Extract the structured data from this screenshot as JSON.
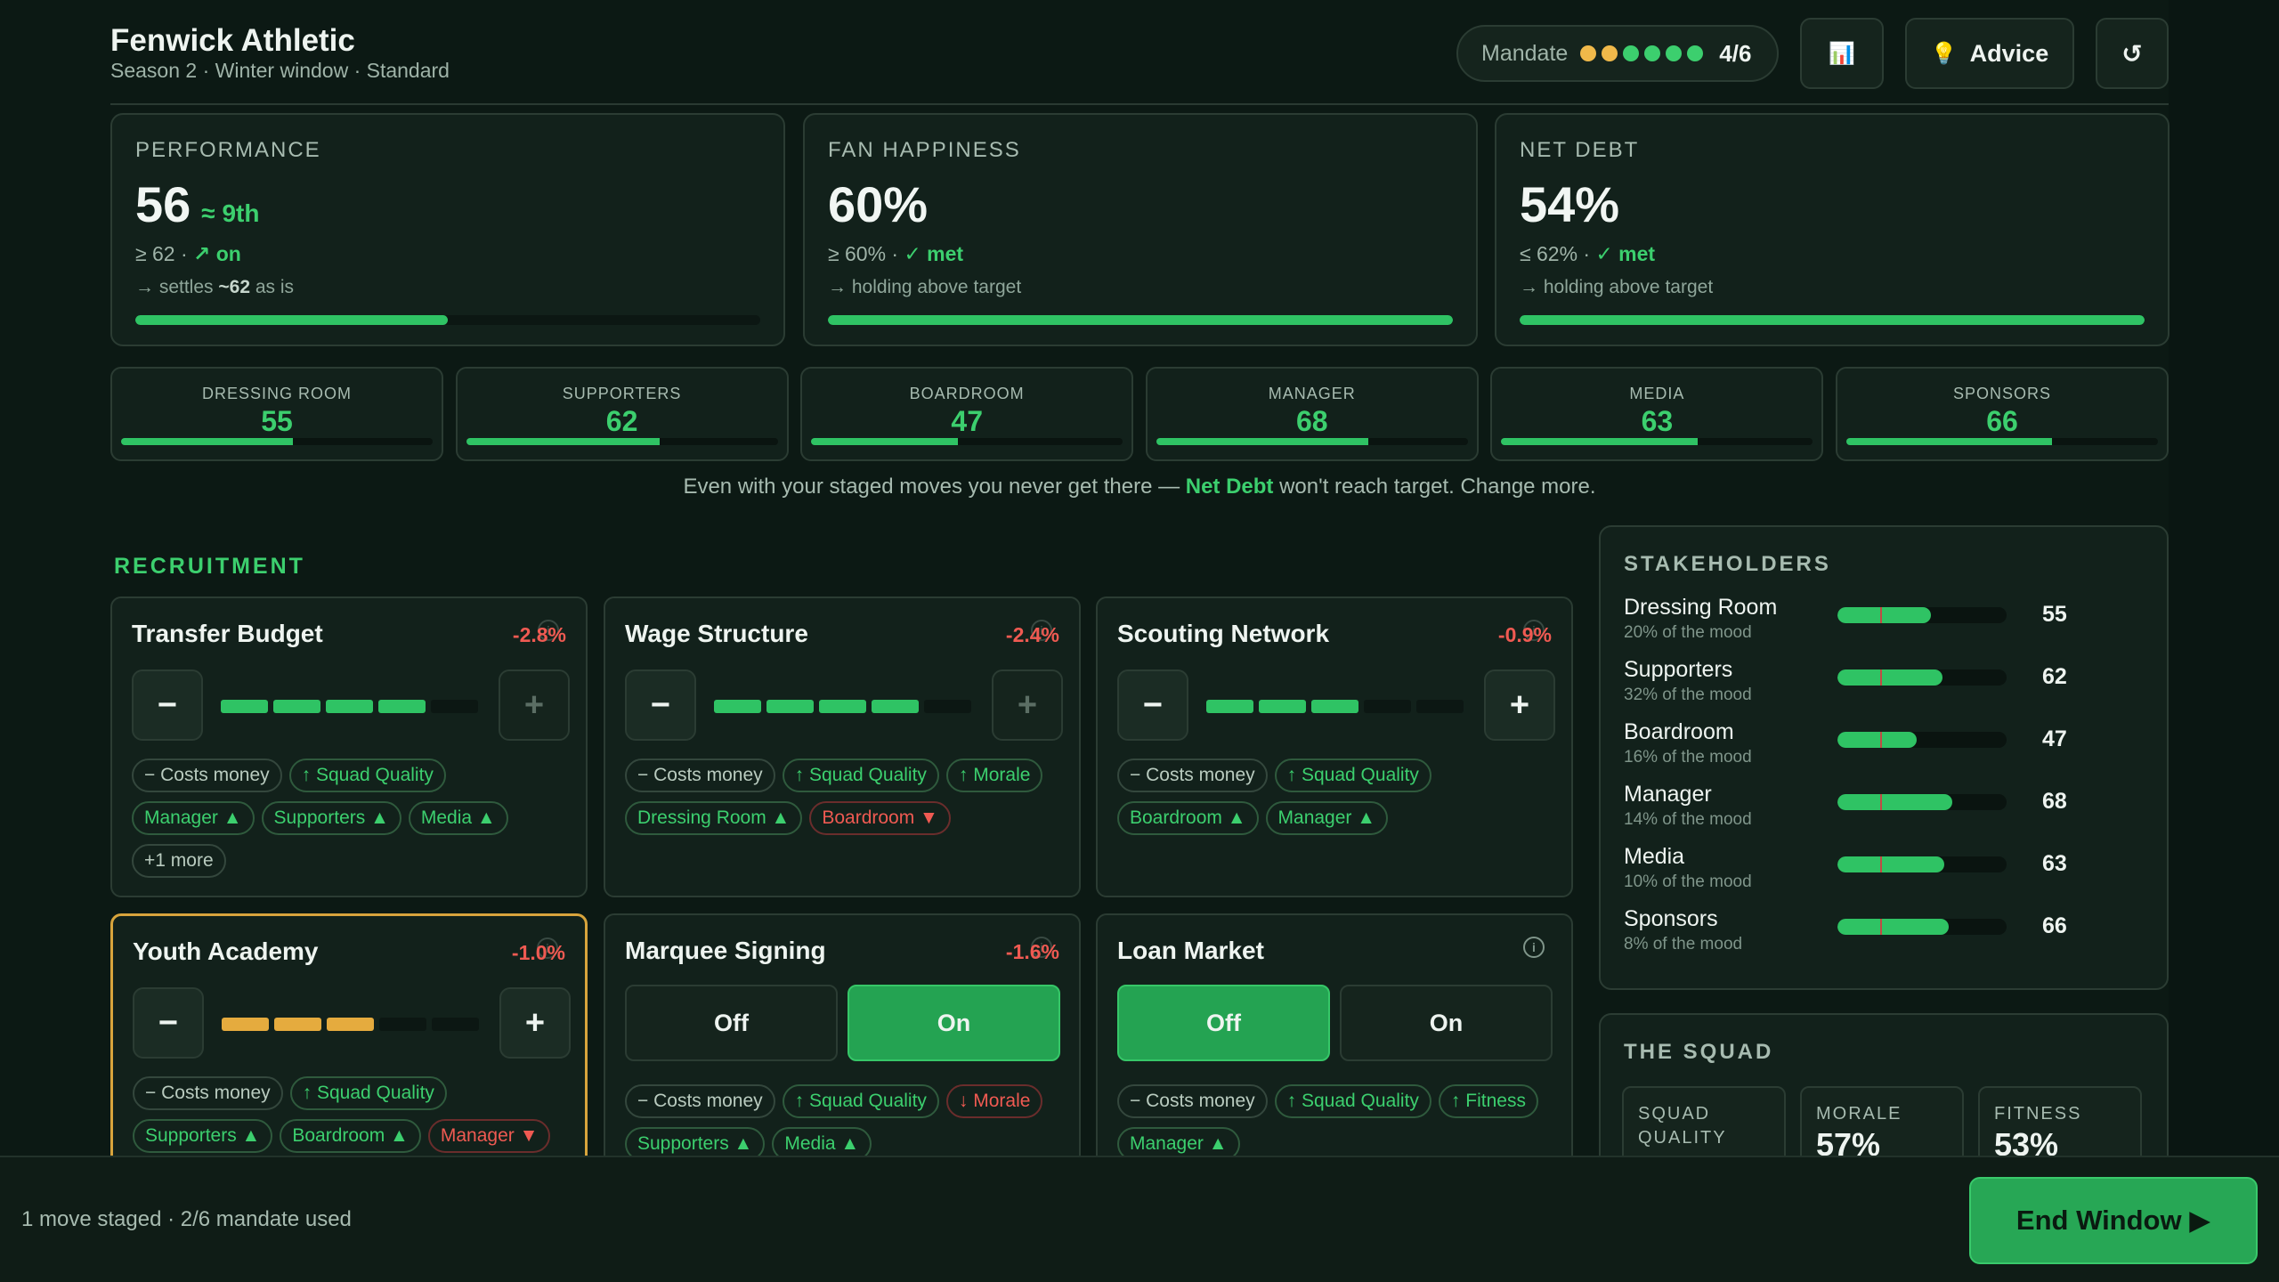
{
  "header": {
    "club_name": "Fenwick Athletic",
    "subtitle": "Season 2 · Winter window · Standard",
    "mandate_label": "Mandate",
    "mandate_count": "4/6",
    "mandate_dots": [
      "#f0b94a",
      "#f0b94a",
      "#3ccf6e",
      "#3ccf6e",
      "#3ccf6e",
      "#3ccf6e"
    ],
    "chart_icon": "📊",
    "advice_icon": "💡",
    "advice_label": "Advice",
    "reset_icon": "↺"
  },
  "metrics": [
    {
      "label": "PERFORMANCE",
      "value": "56",
      "rank": "≈ 9th",
      "target": "≥ 62 · ",
      "status": "↗ on",
      "note_pre": "→ settles ",
      "note_bold": "~62",
      "note_post": " as is",
      "fill": 0.5
    },
    {
      "label": "FAN HAPPINESS",
      "value": "60%",
      "rank": "",
      "target": "≥ 60% · ",
      "status": "✓ met",
      "note_pre": "→ holding above target",
      "note_bold": "",
      "note_post": "",
      "fill": 1.0
    },
    {
      "label": "NET DEBT",
      "value": "54%",
      "rank": "",
      "target": "≤ 62% · ",
      "status": "✓ met",
      "note_pre": "→ holding above target",
      "note_bold": "",
      "note_post": "",
      "fill": 1.0
    }
  ],
  "mini_stats": [
    {
      "label": "DRESSING ROOM",
      "value": "55",
      "fill": 0.55
    },
    {
      "label": "SUPPORTERS",
      "value": "62",
      "fill": 0.62
    },
    {
      "label": "BOARDROOM",
      "value": "47",
      "fill": 0.47
    },
    {
      "label": "MANAGER",
      "value": "68",
      "fill": 0.68
    },
    {
      "label": "MEDIA",
      "value": "63",
      "fill": 0.63
    },
    {
      "label": "SPONSORS",
      "value": "66",
      "fill": 0.66
    }
  ],
  "warning": {
    "pre": "Even with your staged moves you never get there — ",
    "bold": "Net Debt",
    "post": " won't reach target. Change more."
  },
  "recruitment": {
    "title": "RECRUITMENT",
    "cards": [
      {
        "title": "Transfer Budget",
        "delta": "-2.8%",
        "level": 4,
        "max": 5,
        "plus_enabled": false,
        "chips": [
          [
            "− Costs money",
            "neutral"
          ],
          [
            "↑ Squad Quality",
            "pos"
          ],
          [
            "Manager ▲",
            "pos"
          ],
          [
            "Supporters ▲",
            "pos"
          ],
          [
            "Media ▲",
            "pos"
          ],
          [
            "+1 more",
            "neutral"
          ]
        ]
      },
      {
        "title": "Wage Structure",
        "delta": "-2.4%",
        "level": 4,
        "max": 5,
        "plus_enabled": false,
        "chips": [
          [
            "− Costs money",
            "neutral"
          ],
          [
            "↑ Squad Quality",
            "pos"
          ],
          [
            "↑ Morale",
            "pos"
          ],
          [
            "Dressing Room ▲",
            "pos"
          ],
          [
            "Boardroom ▼",
            "neg"
          ]
        ]
      },
      {
        "title": "Scouting Network",
        "delta": "-0.9%",
        "level": 3,
        "max": 5,
        "plus_enabled": true,
        "chips": [
          [
            "− Costs money",
            "neutral"
          ],
          [
            "↑ Squad Quality",
            "pos"
          ],
          [
            "Boardroom ▲",
            "pos"
          ],
          [
            "Manager ▲",
            "pos"
          ]
        ]
      },
      {
        "title": "Youth Academy",
        "delta": "-1.0%",
        "level": 3,
        "max": 5,
        "plus_enabled": true,
        "selected": true,
        "chips": [
          [
            "− Costs money",
            "neutral"
          ],
          [
            "↑ Squad Quality",
            "pos"
          ],
          [
            "Supporters ▲",
            "pos"
          ],
          [
            "Boardroom ▲",
            "pos"
          ],
          [
            "Manager ▼",
            "neg"
          ]
        ]
      },
      {
        "title": "Marquee Signing",
        "delta": "-1.6%",
        "toggle": "On",
        "chips": [
          [
            "− Costs money",
            "neutral"
          ],
          [
            "↑ Squad Quality",
            "pos"
          ],
          [
            "↓ Morale",
            "neg"
          ],
          [
            "Supporters ▲",
            "pos"
          ],
          [
            "Media ▲",
            "pos"
          ]
        ]
      },
      {
        "title": "Loan Market",
        "delta": "",
        "toggle": "Off",
        "chips": [
          [
            "− Costs money",
            "neutral"
          ],
          [
            "↑ Squad Quality",
            "pos"
          ],
          [
            "↑ Fitness",
            "pos"
          ],
          [
            "Manager ▲",
            "pos"
          ]
        ]
      }
    ],
    "minus_label": "−",
    "plus_label": "+",
    "off_label": "Off",
    "on_label": "On",
    "info_label": "i"
  },
  "stakeholders": {
    "title": "STAKEHOLDERS",
    "rows": [
      {
        "name": "Dressing Room",
        "weight": "20% of the mood",
        "value": "55",
        "fill": 0.55
      },
      {
        "name": "Supporters",
        "weight": "32% of the mood",
        "value": "62",
        "fill": 0.62
      },
      {
        "name": "Boardroom",
        "weight": "16% of the mood",
        "value": "47",
        "fill": 0.47
      },
      {
        "name": "Manager",
        "weight": "14% of the mood",
        "value": "68",
        "fill": 0.68
      },
      {
        "name": "Media",
        "weight": "10% of the mood",
        "value": "63",
        "fill": 0.63
      },
      {
        "name": "Sponsors",
        "weight": "8% of the mood",
        "value": "66",
        "fill": 0.66
      }
    ]
  },
  "squad": {
    "title": "THE SQUAD",
    "boxes": [
      {
        "label": "SQUAD QUALITY",
        "value": ""
      },
      {
        "label": "MORALE",
        "value": "57%"
      },
      {
        "label": "FITNESS",
        "value": "53%"
      }
    ]
  },
  "footer": {
    "status": "1 move staged · 2/6 mandate used",
    "end_label": "End Window ▶"
  },
  "colors": {
    "accent": "#3ccf6e",
    "negative": "#ef5a52",
    "selected": "#d8a43c",
    "background": "#0c1914"
  }
}
